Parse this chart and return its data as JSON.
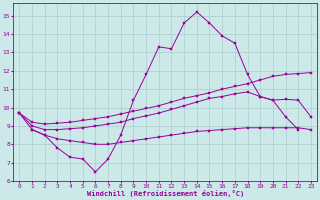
{
  "bg_color": "#cce8e8",
  "line_color": "#990099",
  "grid_color": "#aacece",
  "xlabel": "Windchill (Refroidissement éolien,°C)",
  "tick_color": "#990099",
  "xlim": [
    -0.5,
    23.5
  ],
  "ylim": [
    6,
    15.7
  ],
  "yticks": [
    6,
    7,
    8,
    9,
    10,
    11,
    12,
    13,
    14,
    15
  ],
  "xticks": [
    0,
    1,
    2,
    3,
    4,
    5,
    6,
    7,
    8,
    9,
    10,
    11,
    12,
    13,
    14,
    15,
    16,
    17,
    18,
    19,
    20,
    21,
    22,
    23
  ],
  "curve1_x": [
    0,
    1,
    2,
    3,
    4,
    5,
    6,
    7,
    8,
    9,
    10,
    11,
    12,
    13,
    14,
    15,
    16,
    17,
    18,
    19,
    20,
    21,
    22
  ],
  "curve1_y": [
    9.7,
    8.8,
    8.5,
    7.8,
    7.3,
    7.2,
    6.5,
    7.2,
    8.5,
    10.4,
    11.8,
    13.3,
    13.2,
    14.6,
    15.2,
    14.6,
    13.9,
    13.5,
    11.8,
    10.6,
    10.4,
    9.5,
    8.8
  ],
  "curve2_x": [
    0,
    1,
    2,
    3,
    4,
    5,
    6,
    7,
    8,
    9,
    10,
    11,
    12,
    13,
    14,
    15,
    16,
    17,
    18,
    19,
    20,
    21,
    22,
    23
  ],
  "curve2_y": [
    9.7,
    9.2,
    9.1,
    9.15,
    9.2,
    9.3,
    9.4,
    9.5,
    9.65,
    9.8,
    9.95,
    10.1,
    10.3,
    10.5,
    10.65,
    10.8,
    11.0,
    11.15,
    11.3,
    11.5,
    11.7,
    11.8,
    11.85,
    11.9
  ],
  "curve3_x": [
    0,
    1,
    2,
    3,
    4,
    5,
    6,
    7,
    8,
    9,
    10,
    11,
    12,
    13,
    14,
    15,
    16,
    17,
    18,
    19,
    20,
    21,
    22,
    23
  ],
  "curve3_y": [
    9.7,
    9.0,
    8.8,
    8.8,
    8.85,
    8.9,
    9.0,
    9.1,
    9.2,
    9.4,
    9.55,
    9.7,
    9.9,
    10.1,
    10.3,
    10.5,
    10.6,
    10.75,
    10.85,
    10.6,
    10.4,
    10.45,
    10.4,
    9.5
  ],
  "curve4_x": [
    1,
    2,
    3,
    4,
    5,
    6,
    7,
    8,
    9,
    10,
    11,
    12,
    13,
    14,
    15,
    16,
    17,
    18,
    19,
    20,
    21,
    22,
    23
  ],
  "curve4_y": [
    8.8,
    8.5,
    8.3,
    8.2,
    8.1,
    8.0,
    8.0,
    8.1,
    8.2,
    8.3,
    8.4,
    8.5,
    8.6,
    8.7,
    8.75,
    8.8,
    8.85,
    8.9,
    8.9,
    8.9,
    8.9,
    8.9,
    8.8
  ]
}
